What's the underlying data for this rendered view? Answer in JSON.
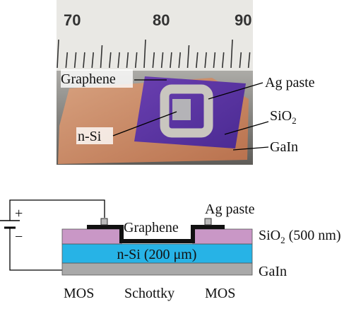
{
  "photo": {
    "ruler_labels": [
      "70",
      "80",
      "90"
    ],
    "labels": {
      "graphene": "Graphene",
      "ag_paste": "Ag paste",
      "sio2": {
        "text": "SiO",
        "sub": "2"
      },
      "n_si": "n-Si",
      "gain": "GaIn"
    }
  },
  "diagram": {
    "battery": {
      "plus": "+",
      "minus": "−"
    },
    "graphene": "Graphene",
    "ag_paste": "Ag paste",
    "sio2": {
      "text": "SiO",
      "sub": "2",
      "suffix": " (500 nm)"
    },
    "n_si": "n-Si (200 μm)",
    "gain": "GaIn",
    "regions": [
      "MOS",
      "Schottky",
      "MOS"
    ]
  }
}
